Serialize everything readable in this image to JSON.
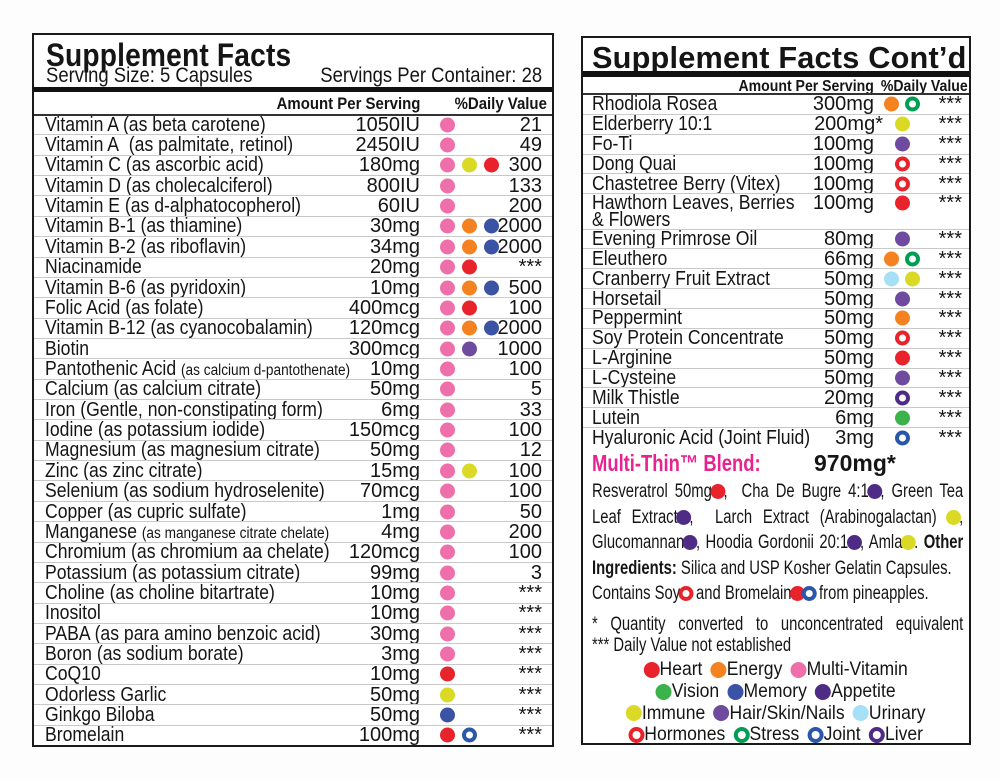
{
  "colors": {
    "pink": "#ee6fa9",
    "red": "#e8232b",
    "orange": "#f58221",
    "yellow": "#d9d926",
    "blue": "#3a53a4",
    "purple": "#6f4b9f",
    "darkpurple": "#4e2b85",
    "green": "#3cb24a",
    "lightblue": "#a5e0f6",
    "ring-red": "#e8232b",
    "ring-green": "#009e54",
    "ring-blue": "#2b57a8",
    "ring-darkpurple": "#4e2b85",
    "blend_heading": "#e6238e"
  },
  "left_panel": {
    "title": "Supplement Facts",
    "serving_size": "Serving Size: 5 Capsules",
    "servings_per_container": "Servings Per Container: 28",
    "col_amount": "Amount Per Serving",
    "col_dv": "%Daily Value",
    "rows": [
      {
        "name": "Vitamin A (as beta carotene)",
        "amount": "1050IU",
        "dots": [
          "pink"
        ],
        "dv": "21"
      },
      {
        "name": "Vitamin A  (as palmitate, retinol)",
        "amount": "2450IU",
        "dots": [
          "pink"
        ],
        "dv": "49"
      },
      {
        "name": "Vitamin C (as ascorbic acid)",
        "amount": "180mg",
        "dots": [
          "pink",
          "yellow",
          "red"
        ],
        "dv": "300"
      },
      {
        "name": "Vitamin D (as cholecalciferol)",
        "amount": "800IU",
        "dots": [
          "pink"
        ],
        "dv": "133"
      },
      {
        "name": "Vitamin E (as d-alphatocopherol)",
        "amount": "60IU",
        "dots": [
          "pink"
        ],
        "dv": "200"
      },
      {
        "name": "Vitamin B-1 (as thiamine)",
        "amount": "30mg",
        "dots": [
          "pink",
          "orange",
          "blue"
        ],
        "dv": "2000"
      },
      {
        "name": "Vitamin B-2 (as riboflavin)",
        "amount": "34mg",
        "dots": [
          "pink",
          "orange",
          "blue"
        ],
        "dv": "2000"
      },
      {
        "name": "Niacinamide",
        "amount": "20mg",
        "dots": [
          "pink",
          "red"
        ],
        "dv": "***"
      },
      {
        "name": "Vitamin B-6 (as pyridoxin)",
        "amount": "10mg",
        "dots": [
          "pink",
          "orange",
          "blue"
        ],
        "dv": "500"
      },
      {
        "name": "Folic Acid (as folate)",
        "amount": "400mcg",
        "dots": [
          "pink",
          "red"
        ],
        "dv": "100"
      },
      {
        "name": "Vitamin B-12 (as cyanocobalamin)",
        "amount": "120mcg",
        "dots": [
          "pink",
          "orange",
          "blue"
        ],
        "dv": "2000"
      },
      {
        "name": "Biotin",
        "amount": "300mcg",
        "dots": [
          "pink",
          "purple"
        ],
        "dv": "1000"
      },
      {
        "name": "Pantothenic Acid ",
        "small": "(as calcium d-pantothenate)",
        "amount": "10mg",
        "dots": [
          "pink"
        ],
        "dv": "100"
      },
      {
        "name": "Calcium (as calcium citrate)",
        "amount": "50mg",
        "dots": [
          "pink"
        ],
        "dv": "5"
      },
      {
        "name": "Iron (Gentle, non-constipating form)",
        "amount": "6mg",
        "dots": [
          "pink"
        ],
        "dv": "33"
      },
      {
        "name": "Iodine (as potassium iodide)",
        "amount": "150mcg",
        "dots": [
          "pink"
        ],
        "dv": "100"
      },
      {
        "name": "Magnesium (as magnesium citrate)",
        "amount": "50mg",
        "dots": [
          "pink"
        ],
        "dv": "12"
      },
      {
        "name": "Zinc (as zinc citrate)",
        "amount": "15mg",
        "dots": [
          "pink",
          "yellow"
        ],
        "dv": "100"
      },
      {
        "name": "Selenium (as sodium hydroselenite)",
        "amount": "70mcg",
        "dots": [
          "pink"
        ],
        "dv": "100"
      },
      {
        "name": "Copper (as cupric sulfate)",
        "amount": "1mg",
        "dots": [
          "pink"
        ],
        "dv": "50"
      },
      {
        "name": "Manganese ",
        "small": "(as manganese citrate chelate)",
        "amount": "4mg",
        "dots": [
          "pink"
        ],
        "dv": "200"
      },
      {
        "name": "Chromium (as chromium aa chelate)",
        "amount": "120mcg",
        "dots": [
          "pink"
        ],
        "dv": "100"
      },
      {
        "name": "Potassium (as potassium citrate)",
        "amount": "99mg",
        "dots": [
          "pink"
        ],
        "dv": "3"
      },
      {
        "name": "Choline (as choline bitartrate)",
        "amount": "10mg",
        "dots": [
          "pink"
        ],
        "dv": "***"
      },
      {
        "name": "Inositol",
        "amount": "10mg",
        "dots": [
          "pink"
        ],
        "dv": "***"
      },
      {
        "name": "PABA (as para amino benzoic acid)",
        "amount": "30mg",
        "dots": [
          "pink"
        ],
        "dv": "***"
      },
      {
        "name": "Boron (as sodium borate)",
        "amount": "3mg",
        "dots": [
          "pink"
        ],
        "dv": "***"
      },
      {
        "name": "CoQ10",
        "amount": "10mg",
        "dots": [
          "red"
        ],
        "dv": "***"
      },
      {
        "name": "Odorless Garlic",
        "amount": "50mg",
        "dots": [
          "yellow"
        ],
        "dv": "***"
      },
      {
        "name": "Ginkgo Biloba",
        "amount": "50mg",
        "dots": [
          "blue"
        ],
        "dv": "***"
      },
      {
        "name": "Bromelain",
        "amount": "100mg",
        "dots": [
          "red",
          "ring-blue"
        ],
        "dv": "***"
      }
    ]
  },
  "right_panel": {
    "title": "Supplement Facts Cont’d",
    "col_amount": "Amount Per Serving",
    "col_dv": "%Daily Value",
    "rows": [
      {
        "name": "Rhodiola Rosea",
        "amount": "300mg",
        "dots": [
          "orange",
          "ring-green"
        ],
        "dv": "***"
      },
      {
        "name": "Elderberry 10:1",
        "amount": "200mg*",
        "dots": [
          "yellow"
        ],
        "dv": "***"
      },
      {
        "name": "Fo-Ti",
        "amount": "100mg",
        "dots": [
          "purple"
        ],
        "dv": "***"
      },
      {
        "name": "Dong Quai",
        "amount": "100mg",
        "dots": [
          "ring-red"
        ],
        "dv": "***"
      },
      {
        "name": "Chastetree Berry (Vitex)",
        "amount": "100mg",
        "dots": [
          "ring-red"
        ],
        "dv": "***"
      },
      {
        "name": "Hawthorn Leaves, Berries",
        "name2": "& Flowers",
        "amount": "100mg",
        "dots": [
          "red"
        ],
        "dv": "***"
      },
      {
        "name": "Evening Primrose Oil",
        "amount": "80mg",
        "dots": [
          "purple"
        ],
        "dv": "***"
      },
      {
        "name": "Eleuthero",
        "amount": "66mg",
        "dots": [
          "orange",
          "ring-green"
        ],
        "dv": "***"
      },
      {
        "name": "Cranberry Fruit Extract",
        "amount": "50mg",
        "dots": [
          "lightblue",
          "yellow"
        ],
        "dv": "***"
      },
      {
        "name": "Horsetail",
        "amount": "50mg",
        "dots": [
          "purple"
        ],
        "dv": "***"
      },
      {
        "name": "Peppermint",
        "amount": "50mg",
        "dots": [
          "orange"
        ],
        "dv": "***"
      },
      {
        "name": "Soy Protein Concentrate",
        "amount": "50mg",
        "dots": [
          "ring-red"
        ],
        "dv": "***"
      },
      {
        "name": "L-Arginine",
        "amount": "50mg",
        "dots": [
          "red"
        ],
        "dv": "***"
      },
      {
        "name": "L-Cysteine",
        "amount": "50mg",
        "dots": [
          "purple"
        ],
        "dv": "***"
      },
      {
        "name": "Milk Thistle",
        "amount": "20mg",
        "dots": [
          "ring-darkpurple"
        ],
        "dv": "***"
      },
      {
        "name": "Lutein",
        "amount": "6mg",
        "dots": [
          "green"
        ],
        "dv": "***"
      },
      {
        "name": "Hyaluronic Acid (Joint Fluid)",
        "amount": "3mg",
        "dots": [
          "ring-blue"
        ],
        "dv": "***"
      }
    ],
    "blend": {
      "label": "Multi-Thin™ Blend:",
      "amount": "970mg*",
      "lines": [
        {
          "justify": true,
          "segments": [
            {
              "t": "Resveratrol 50mg"
            },
            {
              "dot": "red"
            },
            {
              "t": ",  Cha De Bugre 4:1"
            },
            {
              "dot": "darkpurple"
            },
            {
              "t": ", Green Tea"
            }
          ]
        },
        {
          "justify": true,
          "segments": [
            {
              "t": "Leaf Extract"
            },
            {
              "dot": "darkpurple"
            },
            {
              "t": ",  Larch Extract (Arabinogalactan) "
            },
            {
              "dot": "yellow"
            },
            {
              "t": ","
            }
          ]
        },
        {
          "justify": true,
          "segments": [
            {
              "t": "Glucomannan"
            },
            {
              "dot": "darkpurple"
            },
            {
              "t": ", Hoodia Gordonii 20:1"
            },
            {
              "dot": "darkpurple"
            },
            {
              "t": ", Amla"
            },
            {
              "dot": "yellow"
            },
            {
              "t": ". "
            },
            {
              "t": "Other",
              "b": true
            }
          ]
        },
        {
          "justify": false,
          "segments": [
            {
              "t": "Ingredients:",
              "b": true
            },
            {
              "t": " Silica and USP Kosher Gelatin Capsules."
            }
          ]
        },
        {
          "justify": false,
          "segments": [
            {
              "t": "Contains Soy"
            },
            {
              "dot": "ring-red"
            },
            {
              "t": " and Bromelain"
            },
            {
              "dot": "red"
            },
            {
              "dot": "ring-blue"
            },
            {
              "t": " from pineapples."
            }
          ]
        }
      ]
    },
    "footnotes": [
      "* Quantity converted to unconcentrated equivalent",
      "*** Daily Value not established"
    ],
    "legend": [
      [
        {
          "dot": "red",
          "label": "Heart"
        },
        {
          "dot": "orange",
          "label": "Energy"
        },
        {
          "dot": "pink",
          "label": "Multi-Vitamin"
        }
      ],
      [
        {
          "dot": "green",
          "label": "Vision"
        },
        {
          "dot": "blue",
          "label": "Memory"
        },
        {
          "dot": "darkpurple",
          "label": "Appetite"
        }
      ],
      [
        {
          "dot": "yellow",
          "label": "Immune"
        },
        {
          "dot": "purple",
          "label": "Hair/Skin/Nails"
        },
        {
          "dot": "lightblue",
          "label": "Urinary"
        }
      ],
      [
        {
          "dot": "ring-red",
          "label": "Hormones"
        },
        {
          "dot": "ring-green",
          "label": "Stress"
        },
        {
          "dot": "ring-blue",
          "label": "Joint"
        },
        {
          "dot": "ring-darkpurple",
          "label": "Liver"
        }
      ]
    ]
  }
}
